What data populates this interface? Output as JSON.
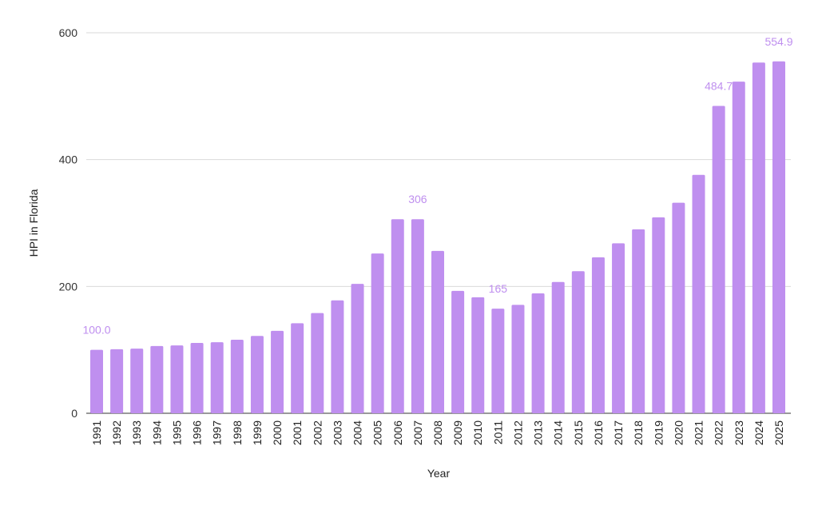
{
  "chart_data": {
    "type": "bar",
    "title": "",
    "xlabel": "Year",
    "ylabel": "HPI in Florida",
    "ylim": [
      0,
      600
    ],
    "yticks": [
      0,
      200,
      400,
      600
    ],
    "grid": true,
    "bar_color": "#bf8fef",
    "categories": [
      "1991",
      "1992",
      "1993",
      "1994",
      "1995",
      "1996",
      "1997",
      "1998",
      "1999",
      "2000",
      "2001",
      "2002",
      "2003",
      "2004",
      "2005",
      "2006",
      "2007",
      "2008",
      "2009",
      "2010",
      "2011",
      "2012",
      "2013",
      "2014",
      "2015",
      "2016",
      "2017",
      "2018",
      "2019",
      "2020",
      "2021",
      "2022",
      "2023",
      "2024",
      "2025"
    ],
    "values": [
      100.0,
      101,
      102,
      106,
      107,
      111,
      112,
      116,
      122,
      130,
      142,
      158,
      178,
      204,
      252,
      306,
      306,
      256,
      193,
      183,
      165,
      171,
      189,
      207,
      224,
      246,
      268,
      290,
      309,
      332,
      376,
      484.7,
      523,
      553,
      554.9
    ],
    "data_labels": [
      {
        "category": "1991",
        "text": "100.0"
      },
      {
        "category": "2007",
        "text": "306"
      },
      {
        "category": "2011",
        "text": "165"
      },
      {
        "category": "2022",
        "text": "484.7"
      },
      {
        "category": "2025",
        "text": "554.9"
      }
    ]
  }
}
